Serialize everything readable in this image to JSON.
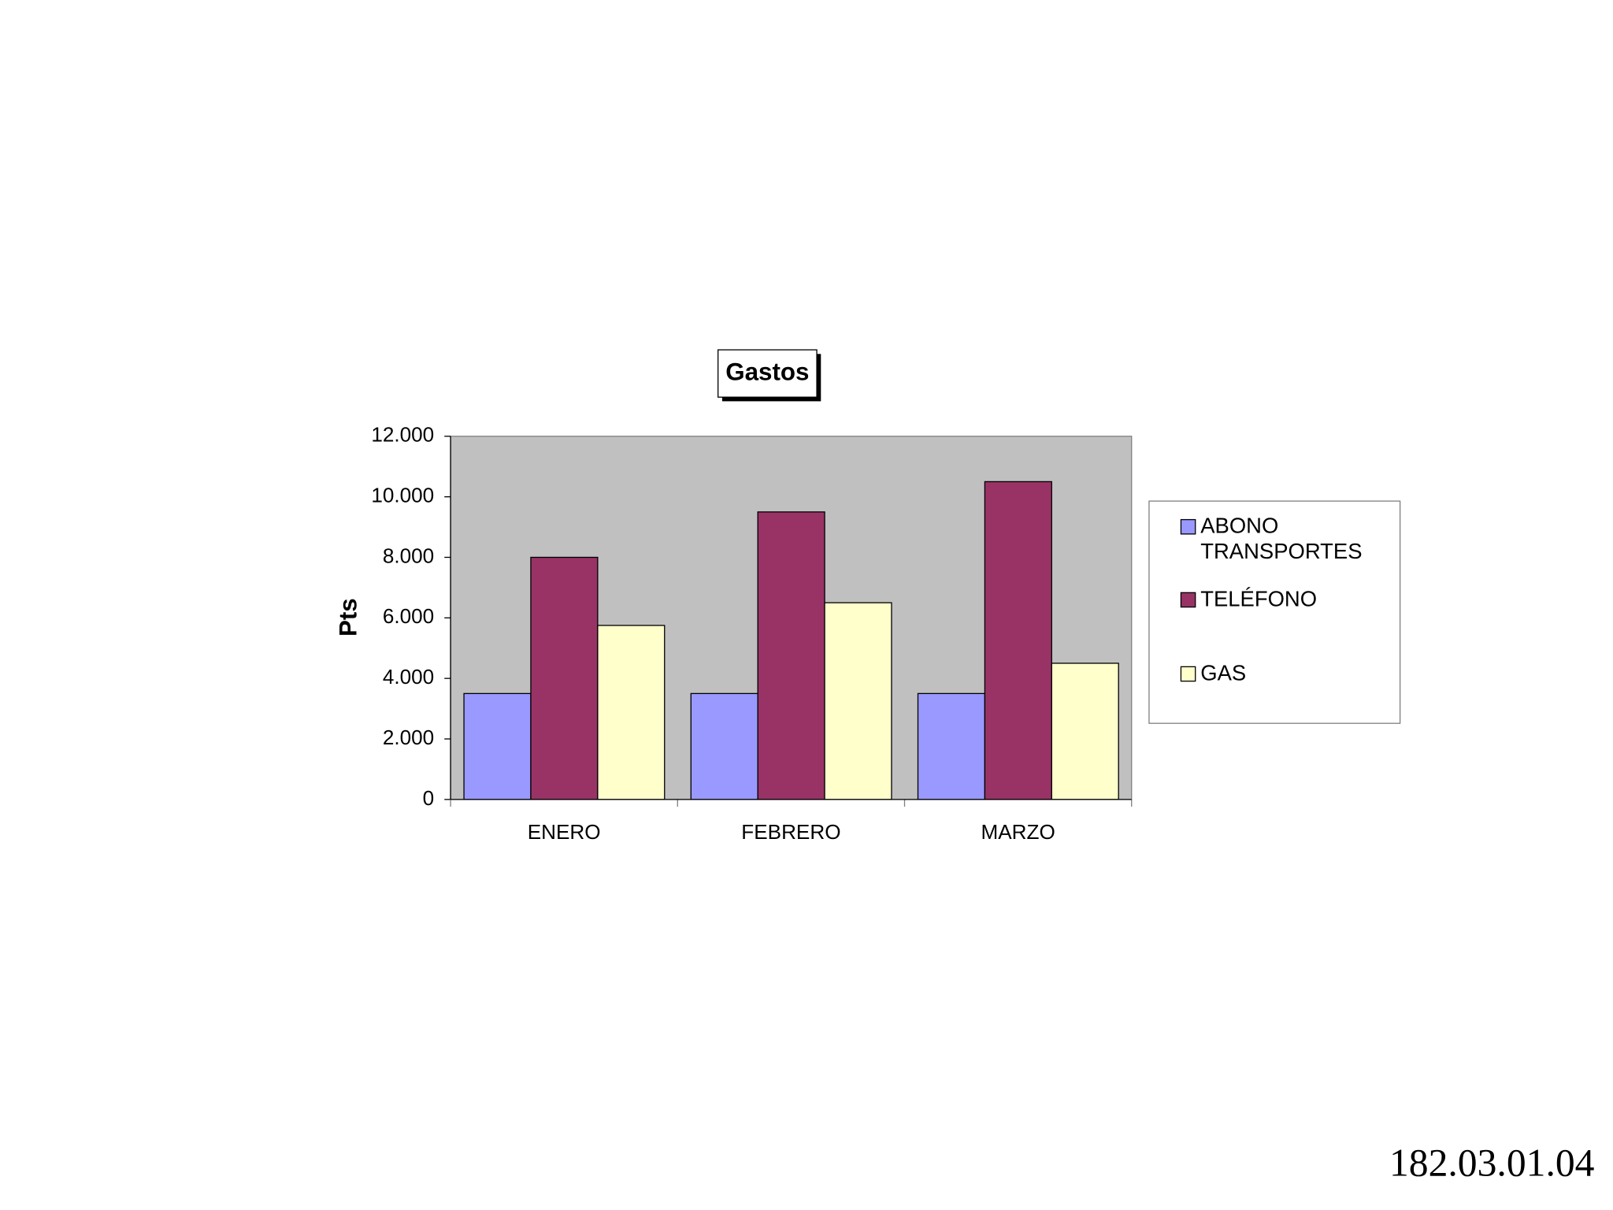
{
  "chart_data": {
    "type": "bar",
    "title": "Gastos",
    "y_label": "Pts",
    "categories": [
      "ENERO",
      "FEBRERO",
      "MARZO"
    ],
    "series": [
      {
        "name": "ABONO TRANSPORTES",
        "color": "#9999ff",
        "values": [
          3500,
          3500,
          3500
        ]
      },
      {
        "name": "TELÉFONO",
        "color": "#993366",
        "values": [
          8000,
          9500,
          10500
        ]
      },
      {
        "name": "GAS",
        "color": "#ffffcc",
        "values": [
          5750,
          6500,
          4500
        ]
      }
    ],
    "ylim": [
      0,
      12000
    ],
    "yticks": [
      0,
      {
        "value": 2000,
        "label": "2.000"
      },
      {
        "value": 4000,
        "label": "4.000"
      },
      {
        "value": 6000,
        "label": "6.000"
      },
      {
        "value": 8000,
        "label": "8.000"
      },
      {
        "value": 10000,
        "label": "10.000"
      },
      {
        "value": 12000,
        "label": "12.000"
      }
    ],
    "plot_background": "#c0c0c0",
    "legend": "right"
  },
  "footer": "182.03.01.04"
}
